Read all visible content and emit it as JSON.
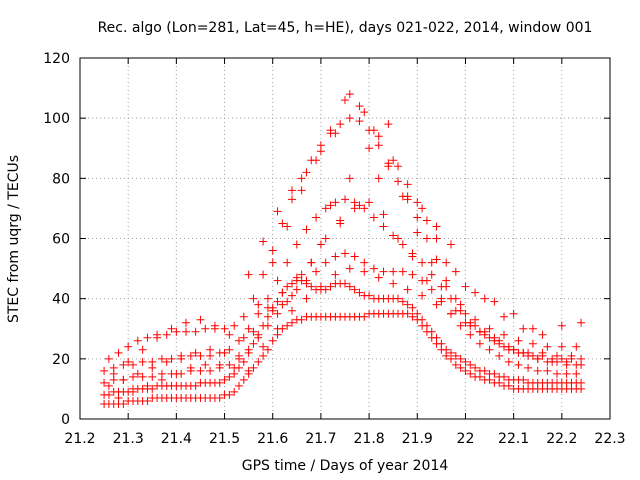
{
  "chart_data": {
    "type": "scatter",
    "title": "Rec. algo (Lon=281, Lat=45, h=HE), days 021-022, 2014, window 001",
    "xlabel": "GPS time / Days of year 2014",
    "ylabel": "STEC from uqrg / TECUs",
    "xlim": [
      21.2,
      22.3
    ],
    "ylim": [
      0,
      120
    ],
    "xticks": [
      "21.2",
      "21.3",
      "21.4",
      "21.5",
      "21.6",
      "21.7",
      "21.8",
      "21.9",
      "22",
      "22.1",
      "22.2",
      "22.3"
    ],
    "yticks": [
      "0",
      "20",
      "40",
      "60",
      "80",
      "100",
      "120"
    ],
    "grid": true,
    "marker": "+",
    "color": "#ff0000",
    "series": [
      {
        "x": [
          21.25,
          21.26,
          21.27,
          21.28,
          21.29,
          21.3,
          21.31,
          21.32,
          21.33,
          21.34,
          21.35,
          21.36,
          21.37,
          21.38,
          21.39,
          21.4,
          21.41,
          21.42,
          21.43,
          21.44,
          21.45,
          21.46,
          21.47,
          21.48,
          21.49,
          21.5,
          21.51,
          21.52,
          21.53,
          21.54,
          21.55,
          21.56,
          21.57,
          21.58,
          21.59,
          21.6,
          21.61,
          21.62,
          21.63,
          21.64,
          21.65,
          21.66,
          21.67,
          21.68,
          21.69,
          21.7,
          21.71,
          21.72,
          21.73,
          21.74,
          21.75,
          21.76,
          21.77,
          21.78,
          21.79,
          21.8,
          21.81,
          21.82,
          21.83,
          21.84,
          21.85,
          21.86,
          21.87,
          21.88,
          21.89,
          21.9,
          21.91,
          21.92,
          21.93,
          21.94,
          21.95,
          21.96,
          21.97,
          21.98,
          21.99,
          22.0,
          22.01,
          22.02,
          22.03,
          22.04,
          22.05,
          22.06,
          22.07,
          22.08,
          22.09,
          22.1,
          22.11,
          22.12,
          22.13,
          22.14,
          22.15,
          22.16,
          22.17,
          22.18,
          22.19,
          22.2,
          22.21,
          22.22,
          22.23,
          22.24
        ],
        "y": [
          5,
          5,
          5,
          5,
          5,
          6,
          6,
          6,
          6,
          6,
          7,
          7,
          7,
          7,
          7,
          7,
          7,
          7,
          7,
          7,
          7,
          7,
          7,
          7,
          7,
          8,
          8,
          9,
          11,
          13,
          15,
          17,
          19,
          21,
          23,
          26,
          28,
          30,
          31,
          32,
          33,
          33,
          34,
          34,
          34,
          34,
          34,
          34,
          34,
          34,
          34,
          34,
          34,
          34,
          34,
          35,
          35,
          35,
          35,
          35,
          35,
          35,
          35,
          35,
          34,
          33,
          31,
          29,
          27,
          25,
          23,
          21,
          20,
          18,
          17,
          16,
          15,
          14,
          14,
          13,
          13,
          12,
          12,
          11,
          11,
          10,
          10,
          10,
          10,
          10,
          10,
          10,
          10,
          10,
          10,
          10,
          10,
          10,
          10,
          10
        ]
      },
      {
        "x": [
          21.25,
          21.26,
          21.27,
          21.28,
          21.29,
          21.3,
          21.31,
          21.32,
          21.33,
          21.34,
          21.35,
          21.36,
          21.37,
          21.38,
          21.39,
          21.4,
          21.41,
          21.42,
          21.43,
          21.44,
          21.45,
          21.46,
          21.47,
          21.48,
          21.49,
          21.5,
          21.51,
          21.52,
          21.53,
          21.54,
          21.55,
          21.56,
          21.57,
          21.58,
          21.59,
          21.6,
          21.61,
          21.62,
          21.63,
          21.64,
          21.65,
          21.66,
          21.67,
          21.68,
          21.69,
          21.7,
          21.71,
          21.72,
          21.73,
          21.74,
          21.75,
          21.76,
          21.77,
          21.78,
          21.79,
          21.8,
          21.81,
          21.82,
          21.83,
          21.84,
          21.85,
          21.86,
          21.87,
          21.88,
          21.89,
          21.9,
          21.91,
          21.92,
          21.93,
          21.94,
          21.95,
          21.96,
          21.97,
          21.98,
          21.99,
          22.0,
          22.01,
          22.02,
          22.03,
          22.04,
          22.05,
          22.06,
          22.07,
          22.08,
          22.09,
          22.1,
          22.11,
          22.12,
          22.13,
          22.14,
          22.15,
          22.16,
          22.17,
          22.18,
          22.19,
          22.2,
          22.21,
          22.22,
          22.23,
          22.24
        ],
        "y": [
          8,
          8,
          9,
          9,
          9,
          9,
          10,
          10,
          10,
          10,
          10,
          11,
          11,
          11,
          11,
          11,
          11,
          11,
          11,
          11,
          12,
          12,
          12,
          12,
          12,
          13,
          14,
          15,
          17,
          19,
          22,
          25,
          28,
          31,
          34,
          37,
          39,
          42,
          44,
          45,
          46,
          46,
          45,
          44,
          43,
          43,
          43,
          44,
          45,
          45,
          45,
          44,
          43,
          42,
          41,
          41,
          40,
          40,
          40,
          40,
          40,
          40,
          39,
          38,
          37,
          35,
          33,
          31,
          29,
          27,
          25,
          23,
          22,
          21,
          20,
          19,
          18,
          17,
          16,
          16,
          15,
          15,
          14,
          14,
          13,
          13,
          13,
          13,
          12,
          12,
          12,
          12,
          12,
          12,
          12,
          12,
          12,
          12,
          12,
          12
        ]
      },
      {
        "x": [
          21.25,
          21.27,
          21.29,
          21.31,
          21.33,
          21.35,
          21.37,
          21.39,
          21.41,
          21.43,
          21.45,
          21.47,
          21.49,
          21.51,
          21.53,
          21.55,
          21.57,
          21.59,
          21.61,
          21.63,
          21.65,
          21.67,
          21.69,
          21.71,
          21.73,
          21.75,
          21.77,
          21.79,
          21.81,
          21.83,
          21.85,
          21.87,
          21.89,
          21.91,
          21.93,
          21.95,
          21.97,
          21.99,
          22.01,
          22.03,
          22.05,
          22.07,
          22.09,
          22.11,
          22.13,
          22.15,
          22.17,
          22.19,
          22.21,
          22.23
        ],
        "y": [
          12,
          13,
          13,
          14,
          14,
          14,
          15,
          15,
          15,
          16,
          16,
          16,
          17,
          18,
          20,
          23,
          27,
          31,
          35,
          39,
          43,
          46,
          49,
          52,
          54,
          55,
          54,
          52,
          50,
          49,
          49,
          49,
          48,
          46,
          43,
          39,
          35,
          31,
          28,
          25,
          23,
          21,
          19,
          18,
          17,
          16,
          16,
          15,
          15,
          15
        ]
      },
      {
        "x": [
          21.25,
          21.27,
          21.29,
          21.31,
          21.33,
          21.35,
          21.37,
          21.39,
          21.41,
          21.43,
          21.45,
          21.47,
          21.49,
          21.51,
          21.53,
          21.55,
          21.57,
          21.59,
          21.61,
          21.63,
          21.65,
          21.67,
          21.69,
          21.71,
          21.73,
          21.75,
          21.77,
          21.79,
          21.81,
          21.83,
          21.85,
          21.87,
          21.89,
          21.91,
          21.93,
          21.95,
          21.97,
          21.99,
          22.01,
          22.03,
          22.05,
          22.07,
          22.09,
          22.11,
          22.13,
          22.15,
          22.17,
          22.19,
          22.21,
          22.23
        ],
        "y": [
          16,
          17,
          18,
          18,
          19,
          19,
          20,
          20,
          20,
          21,
          21,
          21,
          22,
          23,
          26,
          30,
          35,
          40,
          46,
          52,
          58,
          63,
          67,
          70,
          72,
          73,
          72,
          70,
          67,
          64,
          61,
          58,
          55,
          52,
          48,
          44,
          40,
          36,
          32,
          29,
          27,
          25,
          23,
          22,
          21,
          20,
          19,
          19,
          18,
          18
        ]
      },
      {
        "x": [
          21.26,
          21.28,
          21.3,
          21.32,
          21.34,
          21.36,
          21.38,
          21.4,
          21.42,
          21.44,
          21.46,
          21.48,
          21.5,
          21.52,
          21.54,
          21.56,
          21.58,
          21.6,
          21.62,
          21.64,
          21.66,
          21.68,
          21.7,
          21.72,
          21.74,
          21.76,
          21.78,
          21.8,
          21.82,
          21.84,
          21.86,
          21.88,
          21.9,
          21.92,
          21.94,
          21.96,
          21.98,
          22.0,
          22.02,
          22.04,
          22.06,
          22.08,
          22.1,
          22.12,
          22.14,
          22.16,
          22.18,
          22.2,
          22.22,
          22.24
        ],
        "y": [
          20,
          22,
          24,
          26,
          27,
          28,
          28,
          29,
          29,
          29,
          30,
          30,
          30,
          31,
          34,
          40,
          48,
          56,
          65,
          73,
          80,
          86,
          91,
          95,
          98,
          100,
          99,
          96,
          91,
          85,
          79,
          73,
          67,
          60,
          53,
          46,
          40,
          35,
          31,
          28,
          26,
          24,
          23,
          22,
          21,
          21,
          20,
          20,
          20,
          20
        ]
      },
      {
        "x": [
          21.27,
          21.3,
          21.33,
          21.36,
          21.39,
          21.42,
          21.45,
          21.48,
          21.51,
          21.54,
          21.57,
          21.6,
          21.63,
          21.66,
          21.69,
          21.72,
          21.75,
          21.78,
          21.81,
          21.84,
          21.87,
          21.9,
          21.93,
          21.96,
          21.99,
          22.02,
          22.05,
          22.08,
          22.11,
          22.14,
          22.17,
          22.2,
          22.23
        ],
        "y": [
          15,
          19,
          23,
          27,
          30,
          32,
          33,
          31,
          28,
          27,
          38,
          52,
          64,
          76,
          86,
          96,
          106,
          104,
          96,
          84,
          74,
          62,
          52,
          44,
          38,
          33,
          30,
          28,
          26,
          25,
          24,
          24,
          24
        ]
      },
      {
        "x": [
          21.26,
          21.29,
          21.32,
          21.35,
          21.38,
          21.41,
          21.44,
          21.47,
          21.5,
          21.53,
          21.56,
          21.59,
          21.62,
          21.65,
          21.68,
          21.71,
          21.74,
          21.77,
          21.8,
          21.83,
          21.86,
          21.89,
          21.92,
          21.95,
          21.98,
          22.01,
          22.04,
          22.07,
          22.1,
          22.13,
          22.16,
          22.19,
          22.22
        ],
        "y": [
          11,
          13,
          15,
          17,
          19,
          21,
          22,
          23,
          22,
          21,
          29,
          37,
          42,
          47,
          52,
          60,
          66,
          70,
          72,
          68,
          60,
          54,
          46,
          40,
          36,
          31,
          29,
          26,
          23,
          22,
          22,
          21,
          21
        ]
      },
      {
        "x": [
          21.28,
          21.31,
          21.34,
          21.37,
          21.4,
          21.43,
          21.46,
          21.49,
          21.52,
          21.55,
          21.58,
          21.61,
          21.64,
          21.67,
          21.7,
          21.73,
          21.76,
          21.79,
          21.82,
          21.85,
          21.88,
          21.91,
          21.94,
          21.97,
          22.0,
          22.03,
          22.06,
          22.09,
          22.12,
          22.15,
          22.18,
          22.21,
          22.24
        ],
        "y": [
          7,
          9,
          11,
          13,
          15,
          17,
          18,
          18,
          17,
          16,
          24,
          30,
          36,
          40,
          44,
          48,
          50,
          49,
          47,
          45,
          43,
          41,
          38,
          35,
          32,
          29,
          27,
          24,
          22,
          20,
          19,
          19,
          18
        ]
      },
      {
        "x": [
          21.55,
          21.58,
          21.61,
          21.64,
          21.67,
          21.7,
          21.73,
          21.76,
          21.79,
          21.82,
          21.85,
          21.88,
          21.91,
          21.94,
          21.97
        ],
        "y": [
          48,
          59,
          69,
          76,
          82,
          89,
          95,
          108,
          102,
          94,
          86,
          78,
          70,
          64,
          58
        ]
      },
      {
        "x": [
          21.62,
          21.66,
          21.7,
          21.74,
          21.78,
          21.82,
          21.86,
          21.9,
          21.94,
          21.98,
          22.02,
          22.06,
          22.1,
          22.14
        ],
        "y": [
          38,
          48,
          58,
          65,
          71,
          80,
          84,
          72,
          60,
          49,
          42,
          39,
          35,
          30
        ]
      },
      {
        "x": [
          21.6,
          21.64,
          21.68,
          21.72,
          21.76,
          21.8,
          21.84,
          21.88,
          21.92,
          21.96,
          22.0,
          22.04,
          22.08,
          22.12,
          22.16,
          22.2,
          22.24
        ],
        "y": [
          36,
          41,
          52,
          71,
          80,
          90,
          98,
          74,
          66,
          52,
          44,
          40,
          34,
          30,
          28,
          31,
          32
        ]
      }
    ]
  }
}
